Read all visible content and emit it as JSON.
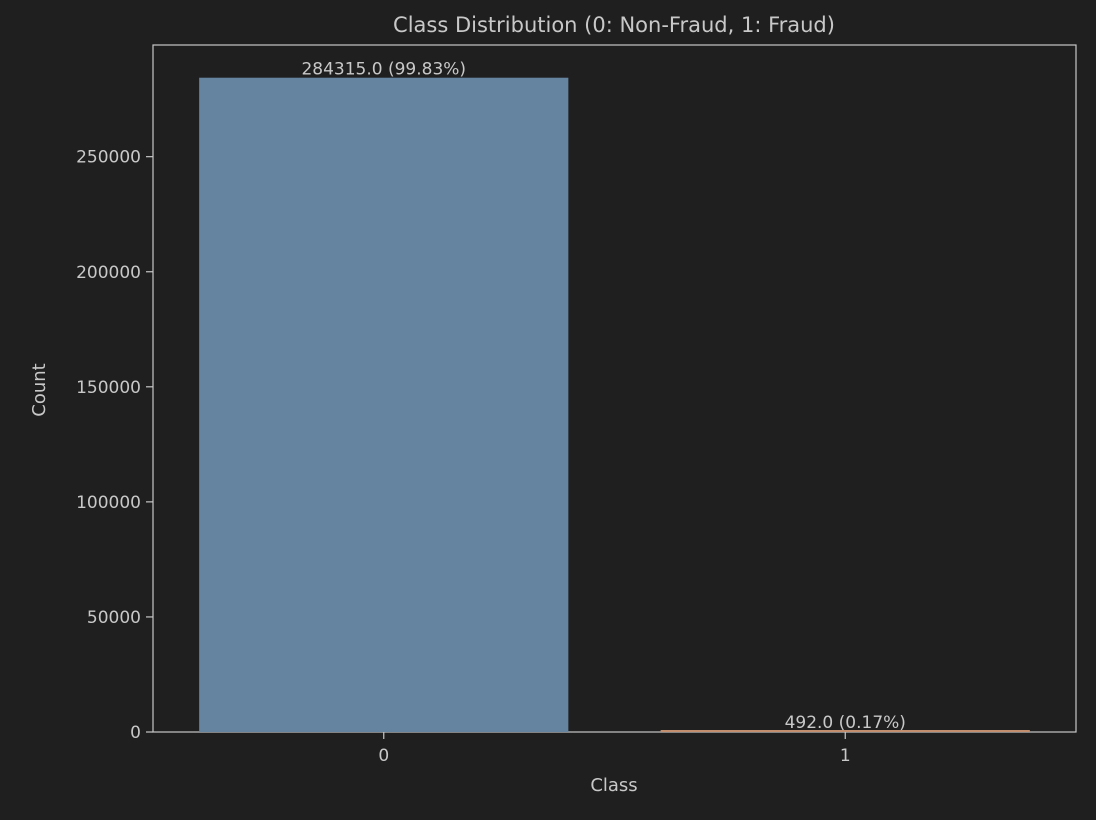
{
  "colors": {
    "background": "#1f1f1f",
    "axes_face": "#1f1f1f",
    "spine": "#c8c8c8",
    "text": "#c8c8c8",
    "bar_0": "#6584a0",
    "bar_1": "#c28e6e"
  },
  "chart_data": {
    "type": "bar",
    "title": "Class Distribution (0: Non-Fraud, 1: Fraud)",
    "xlabel": "Class",
    "ylabel": "Count",
    "categories": [
      "0",
      "1"
    ],
    "values": [
      284315,
      492
    ],
    "value_labels": [
      "284315.0 (99.83%)",
      "492.0 (0.17%)"
    ],
    "ylim": [
      0,
      298531
    ],
    "yticks": [
      0,
      50000,
      100000,
      150000,
      200000,
      250000
    ],
    "ytick_labels": [
      "0",
      "50000",
      "100000",
      "150000",
      "200000",
      "250000"
    ],
    "grid": false,
    "legend": "none"
  }
}
